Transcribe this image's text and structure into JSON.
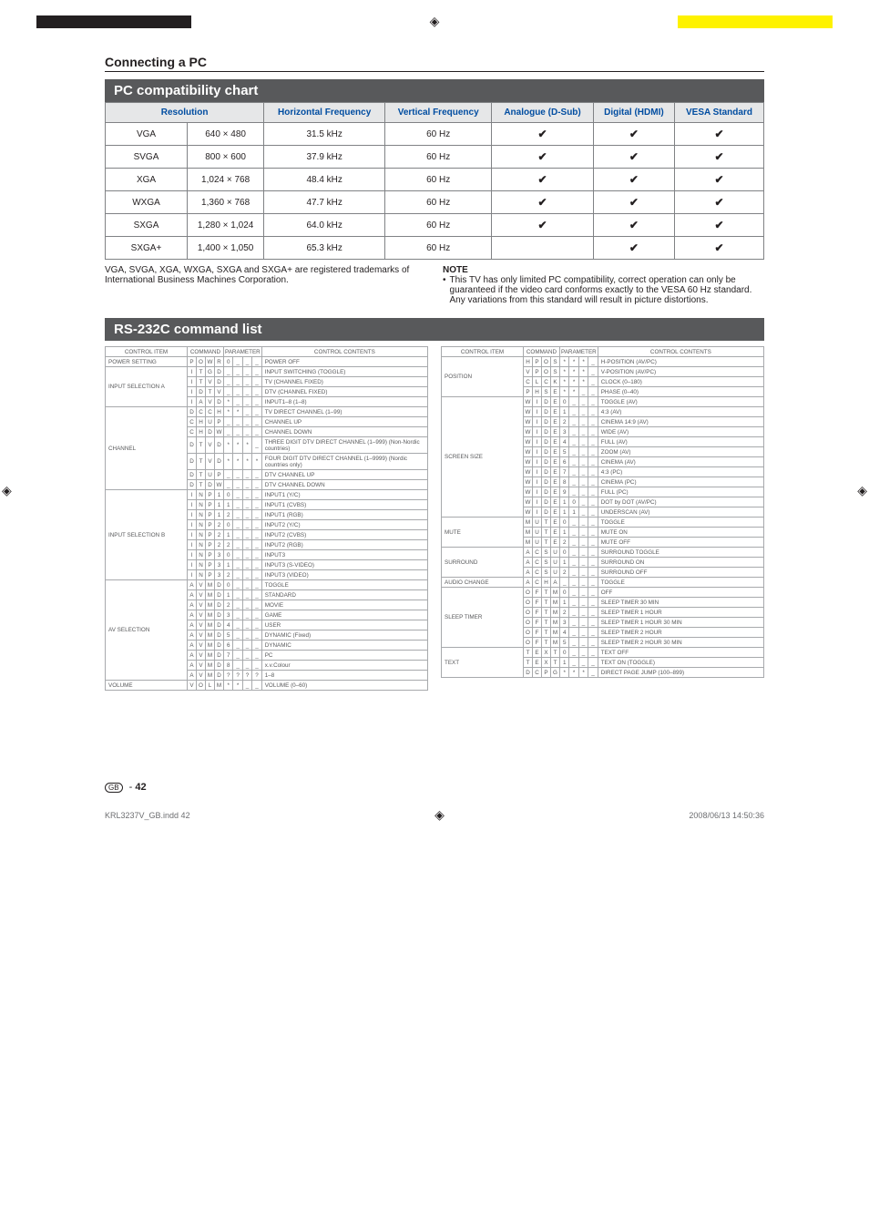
{
  "section_title": "Connecting a PC",
  "pc_chart": {
    "title": "PC compatibility chart",
    "headers": [
      "Resolution",
      "Horizontal Frequency",
      "Vertical Frequency",
      "Analogue (D-Sub)",
      "Digital (HDMI)",
      "VESA Standard"
    ],
    "rows": [
      {
        "label": "VGA",
        "res": "640 × 480",
        "hf": "31.5 kHz",
        "vf": "60 Hz",
        "analog": true,
        "digital": true,
        "vesa": true
      },
      {
        "label": "SVGA",
        "res": "800 × 600",
        "hf": "37.9 kHz",
        "vf": "60 Hz",
        "analog": true,
        "digital": true,
        "vesa": true
      },
      {
        "label": "XGA",
        "res": "1,024 × 768",
        "hf": "48.4 kHz",
        "vf": "60 Hz",
        "analog": true,
        "digital": true,
        "vesa": true
      },
      {
        "label": "WXGA",
        "res": "1,360 × 768",
        "hf": "47.7 kHz",
        "vf": "60 Hz",
        "analog": true,
        "digital": true,
        "vesa": true
      },
      {
        "label": "SXGA",
        "res": "1,280 × 1,024",
        "hf": "64.0 kHz",
        "vf": "60 Hz",
        "analog": true,
        "digital": true,
        "vesa": true
      },
      {
        "label": "SXGA+",
        "res": "1,400 × 1,050",
        "hf": "65.3 kHz",
        "vf": "60 Hz",
        "analog": false,
        "digital": true,
        "vesa": true
      }
    ],
    "trademark_note": "VGA, SVGA, XGA, WXGA, SXGA and SXGA+ are registered trademarks of International Business Machines Corporation.",
    "note_title": "NOTE",
    "note_text": "This TV has only limited PC compatibility, correct operation can only be guaranteed if the video card conforms exactly to the VESA 60 Hz standard. Any variations from this standard will result in picture distortions."
  },
  "rs232c": {
    "title": "RS-232C command list",
    "headers": [
      "CONTROL ITEM",
      "COMMAND",
      "PARAMETER",
      "CONTROL CONTENTS"
    ],
    "left": [
      {
        "item": "POWER SETTING",
        "c": [
          "P",
          "O",
          "W",
          "R"
        ],
        "p": [
          "0",
          "_",
          "_",
          "_"
        ],
        "content": "POWER OFF"
      },
      {
        "item": "INPUT SELECTION A",
        "c": [
          "I",
          "T",
          "G",
          "D"
        ],
        "p": [
          "_",
          "_",
          "_",
          "_"
        ],
        "content": "INPUT SWITCHING (TOGGLE)"
      },
      {
        "item": "",
        "c": [
          "I",
          "T",
          "V",
          "D"
        ],
        "p": [
          "_",
          "_",
          "_",
          "_"
        ],
        "content": "TV (CHANNEL FIXED)"
      },
      {
        "item": "",
        "c": [
          "I",
          "D",
          "T",
          "V"
        ],
        "p": [
          "_",
          "_",
          "_",
          "_"
        ],
        "content": "DTV (CHANNEL FIXED)"
      },
      {
        "item": "",
        "c": [
          "I",
          "A",
          "V",
          "D"
        ],
        "p": [
          "*",
          "_",
          "_",
          "_"
        ],
        "content": "INPUT1–8 (1–8)"
      },
      {
        "item": "CHANNEL",
        "c": [
          "D",
          "C",
          "C",
          "H"
        ],
        "p": [
          "*",
          "*",
          "_",
          "_"
        ],
        "content": "TV DIRECT CHANNEL (1–99)"
      },
      {
        "item": "",
        "c": [
          "C",
          "H",
          "U",
          "P"
        ],
        "p": [
          "_",
          "_",
          "_",
          "_"
        ],
        "content": "CHANNEL UP"
      },
      {
        "item": "",
        "c": [
          "C",
          "H",
          "D",
          "W"
        ],
        "p": [
          "_",
          "_",
          "_",
          "_"
        ],
        "content": "CHANNEL DOWN"
      },
      {
        "item": "",
        "c": [
          "D",
          "T",
          "V",
          "D"
        ],
        "p": [
          "*",
          "*",
          "*",
          "_"
        ],
        "content": "THREE DIGIT DTV DIRECT CHANNEL (1–999) (Non-Nordic countries)"
      },
      {
        "item": "",
        "c": [
          "D",
          "T",
          "V",
          "D"
        ],
        "p": [
          "*",
          "*",
          "*",
          "*"
        ],
        "content": "FOUR DIGIT DTV DIRECT CHANNEL (1–9999) (Nordic countries only)"
      },
      {
        "item": "",
        "c": [
          "D",
          "T",
          "U",
          "P"
        ],
        "p": [
          "_",
          "_",
          "_",
          "_"
        ],
        "content": "DTV CHANNEL UP"
      },
      {
        "item": "",
        "c": [
          "D",
          "T",
          "D",
          "W"
        ],
        "p": [
          "_",
          "_",
          "_",
          "_"
        ],
        "content": "DTV CHANNEL DOWN"
      },
      {
        "item": "INPUT SELECTION B",
        "c": [
          "I",
          "N",
          "P",
          "1"
        ],
        "p": [
          "0",
          "_",
          "_",
          "_"
        ],
        "content": "INPUT1 (Y/C)"
      },
      {
        "item": "",
        "c": [
          "I",
          "N",
          "P",
          "1"
        ],
        "p": [
          "1",
          "_",
          "_",
          "_"
        ],
        "content": "INPUT1 (CVBS)"
      },
      {
        "item": "",
        "c": [
          "I",
          "N",
          "P",
          "1"
        ],
        "p": [
          "2",
          "_",
          "_",
          "_"
        ],
        "content": "INPUT1 (RGB)"
      },
      {
        "item": "",
        "c": [
          "I",
          "N",
          "P",
          "2"
        ],
        "p": [
          "0",
          "_",
          "_",
          "_"
        ],
        "content": "INPUT2 (Y/C)"
      },
      {
        "item": "",
        "c": [
          "I",
          "N",
          "P",
          "2"
        ],
        "p": [
          "1",
          "_",
          "_",
          "_"
        ],
        "content": "INPUT2 (CVBS)"
      },
      {
        "item": "",
        "c": [
          "I",
          "N",
          "P",
          "2"
        ],
        "p": [
          "2",
          "_",
          "_",
          "_"
        ],
        "content": "INPUT2 (RGB)"
      },
      {
        "item": "",
        "c": [
          "I",
          "N",
          "P",
          "3"
        ],
        "p": [
          "0",
          "_",
          "_",
          "_"
        ],
        "content": "INPUT3"
      },
      {
        "item": "",
        "c": [
          "I",
          "N",
          "P",
          "3"
        ],
        "p": [
          "1",
          "_",
          "_",
          "_"
        ],
        "content": "INPUT3 (S-VIDEO)"
      },
      {
        "item": "",
        "c": [
          "I",
          "N",
          "P",
          "3"
        ],
        "p": [
          "2",
          "_",
          "_",
          "_"
        ],
        "content": "INPUT3 (VIDEO)"
      },
      {
        "item": "AV SELECTION",
        "c": [
          "A",
          "V",
          "M",
          "D"
        ],
        "p": [
          "0",
          "_",
          "_",
          "_"
        ],
        "content": "TOGGLE"
      },
      {
        "item": "",
        "c": [
          "A",
          "V",
          "M",
          "D"
        ],
        "p": [
          "1",
          "_",
          "_",
          "_"
        ],
        "content": "STANDARD"
      },
      {
        "item": "",
        "c": [
          "A",
          "V",
          "M",
          "D"
        ],
        "p": [
          "2",
          "_",
          "_",
          "_"
        ],
        "content": "MOVIE"
      },
      {
        "item": "",
        "c": [
          "A",
          "V",
          "M",
          "D"
        ],
        "p": [
          "3",
          "_",
          "_",
          "_"
        ],
        "content": "GAME"
      },
      {
        "item": "",
        "c": [
          "A",
          "V",
          "M",
          "D"
        ],
        "p": [
          "4",
          "_",
          "_",
          "_"
        ],
        "content": "USER"
      },
      {
        "item": "",
        "c": [
          "A",
          "V",
          "M",
          "D"
        ],
        "p": [
          "5",
          "_",
          "_",
          "_"
        ],
        "content": "DYNAMIC (Fixed)"
      },
      {
        "item": "",
        "c": [
          "A",
          "V",
          "M",
          "D"
        ],
        "p": [
          "6",
          "_",
          "_",
          "_"
        ],
        "content": "DYNAMIC"
      },
      {
        "item": "",
        "c": [
          "A",
          "V",
          "M",
          "D"
        ],
        "p": [
          "7",
          "_",
          "_",
          "_"
        ],
        "content": "PC"
      },
      {
        "item": "",
        "c": [
          "A",
          "V",
          "M",
          "D"
        ],
        "p": [
          "8",
          "_",
          "_",
          "_"
        ],
        "content": "x.v.Colour"
      },
      {
        "item": "",
        "c": [
          "A",
          "V",
          "M",
          "D"
        ],
        "p": [
          "?",
          "?",
          "?",
          "?"
        ],
        "content": "1–8"
      },
      {
        "item": "VOLUME",
        "c": [
          "V",
          "O",
          "L",
          "M"
        ],
        "p": [
          "*",
          "*",
          "_",
          "_"
        ],
        "content": "VOLUME (0–60)"
      }
    ],
    "right": [
      {
        "item": "POSITION",
        "c": [
          "H",
          "P",
          "O",
          "S"
        ],
        "p": [
          "*",
          "*",
          "*",
          "_"
        ],
        "content": "H-POSITION (AV/PC)"
      },
      {
        "item": "",
        "c": [
          "V",
          "P",
          "O",
          "S"
        ],
        "p": [
          "*",
          "*",
          "*",
          "_"
        ],
        "content": "V-POSITION (AV/PC)"
      },
      {
        "item": "",
        "c": [
          "C",
          "L",
          "C",
          "K"
        ],
        "p": [
          "*",
          "*",
          "*",
          "_"
        ],
        "content": "CLOCK (0–180)"
      },
      {
        "item": "",
        "c": [
          "P",
          "H",
          "S",
          "E"
        ],
        "p": [
          "*",
          "*",
          "_",
          "_"
        ],
        "content": "PHASE (0–40)"
      },
      {
        "item": "SCREEN SIZE",
        "c": [
          "W",
          "I",
          "D",
          "E"
        ],
        "p": [
          "0",
          "_",
          "_",
          "_"
        ],
        "content": "TOGGLE (AV)"
      },
      {
        "item": "",
        "c": [
          "W",
          "I",
          "D",
          "E"
        ],
        "p": [
          "1",
          "_",
          "_",
          "_"
        ],
        "content": "4:3 (AV)"
      },
      {
        "item": "",
        "c": [
          "W",
          "I",
          "D",
          "E"
        ],
        "p": [
          "2",
          "_",
          "_",
          "_"
        ],
        "content": "CINEMA 14:9 (AV)"
      },
      {
        "item": "",
        "c": [
          "W",
          "I",
          "D",
          "E"
        ],
        "p": [
          "3",
          "_",
          "_",
          "_"
        ],
        "content": "WIDE (AV)"
      },
      {
        "item": "",
        "c": [
          "W",
          "I",
          "D",
          "E"
        ],
        "p": [
          "4",
          "_",
          "_",
          "_"
        ],
        "content": "FULL (AV)"
      },
      {
        "item": "",
        "c": [
          "W",
          "I",
          "D",
          "E"
        ],
        "p": [
          "5",
          "_",
          "_",
          "_"
        ],
        "content": "ZOOM (AV)"
      },
      {
        "item": "",
        "c": [
          "W",
          "I",
          "D",
          "E"
        ],
        "p": [
          "6",
          "_",
          "_",
          "_"
        ],
        "content": "CINEMA (AV)"
      },
      {
        "item": "",
        "c": [
          "W",
          "I",
          "D",
          "E"
        ],
        "p": [
          "7",
          "_",
          "_",
          "_"
        ],
        "content": "4:3 (PC)"
      },
      {
        "item": "",
        "c": [
          "W",
          "I",
          "D",
          "E"
        ],
        "p": [
          "8",
          "_",
          "_",
          "_"
        ],
        "content": "CINEMA (PC)"
      },
      {
        "item": "",
        "c": [
          "W",
          "I",
          "D",
          "E"
        ],
        "p": [
          "9",
          "_",
          "_",
          "_"
        ],
        "content": "FULL (PC)"
      },
      {
        "item": "",
        "c": [
          "W",
          "I",
          "D",
          "E"
        ],
        "p": [
          "1",
          "0",
          "_",
          "_"
        ],
        "content": "DOT by DOT (AV/PC)"
      },
      {
        "item": "",
        "c": [
          "W",
          "I",
          "D",
          "E"
        ],
        "p": [
          "1",
          "1",
          "_",
          "_"
        ],
        "content": "UNDERSCAN (AV)"
      },
      {
        "item": "MUTE",
        "c": [
          "M",
          "U",
          "T",
          "E"
        ],
        "p": [
          "0",
          "_",
          "_",
          "_"
        ],
        "content": "TOGGLE"
      },
      {
        "item": "",
        "c": [
          "M",
          "U",
          "T",
          "E"
        ],
        "p": [
          "1",
          "_",
          "_",
          "_"
        ],
        "content": "MUTE ON"
      },
      {
        "item": "",
        "c": [
          "M",
          "U",
          "T",
          "E"
        ],
        "p": [
          "2",
          "_",
          "_",
          "_"
        ],
        "content": "MUTE OFF"
      },
      {
        "item": "SURROUND",
        "c": [
          "A",
          "C",
          "S",
          "U"
        ],
        "p": [
          "0",
          "_",
          "_",
          "_"
        ],
        "content": "SURROUND TOGGLE"
      },
      {
        "item": "",
        "c": [
          "A",
          "C",
          "S",
          "U"
        ],
        "p": [
          "1",
          "_",
          "_",
          "_"
        ],
        "content": "SURROUND ON"
      },
      {
        "item": "",
        "c": [
          "A",
          "C",
          "S",
          "U"
        ],
        "p": [
          "2",
          "_",
          "_",
          "_"
        ],
        "content": "SURROUND OFF"
      },
      {
        "item": "AUDIO CHANGE",
        "c": [
          "A",
          "C",
          "H",
          "A"
        ],
        "p": [
          "_",
          "_",
          "_",
          "_"
        ],
        "content": "TOGGLE"
      },
      {
        "item": "SLEEP TIMER",
        "c": [
          "O",
          "F",
          "T",
          "M"
        ],
        "p": [
          "0",
          "_",
          "_",
          "_"
        ],
        "content": "OFF"
      },
      {
        "item": "",
        "c": [
          "O",
          "F",
          "T",
          "M"
        ],
        "p": [
          "1",
          "_",
          "_",
          "_"
        ],
        "content": "SLEEP TIMER 30 MIN"
      },
      {
        "item": "",
        "c": [
          "O",
          "F",
          "T",
          "M"
        ],
        "p": [
          "2",
          "_",
          "_",
          "_"
        ],
        "content": "SLEEP TIMER 1 HOUR"
      },
      {
        "item": "",
        "c": [
          "O",
          "F",
          "T",
          "M"
        ],
        "p": [
          "3",
          "_",
          "_",
          "_"
        ],
        "content": "SLEEP TIMER 1 HOUR 30 MIN"
      },
      {
        "item": "",
        "c": [
          "O",
          "F",
          "T",
          "M"
        ],
        "p": [
          "4",
          "_",
          "_",
          "_"
        ],
        "content": "SLEEP TIMER 2 HOUR"
      },
      {
        "item": "",
        "c": [
          "O",
          "F",
          "T",
          "M"
        ],
        "p": [
          "5",
          "_",
          "_",
          "_"
        ],
        "content": "SLEEP TIMER 2 HOUR 30 MIN"
      },
      {
        "item": "TEXT",
        "c": [
          "T",
          "E",
          "X",
          "T"
        ],
        "p": [
          "0",
          "_",
          "_",
          "_"
        ],
        "content": "TEXT OFF"
      },
      {
        "item": "",
        "c": [
          "T",
          "E",
          "X",
          "T"
        ],
        "p": [
          "1",
          "_",
          "_",
          "_"
        ],
        "content": "TEXT ON (TOGGLE)"
      },
      {
        "item": "",
        "c": [
          "D",
          "C",
          "P",
          "G"
        ],
        "p": [
          "*",
          "*",
          "*",
          "_"
        ],
        "content": "DIRECT PAGE JUMP (100–899)"
      }
    ]
  },
  "footer": {
    "gb_label": "GB",
    "page": "42",
    "filename": "KRL3237V_GB.indd   42",
    "timestamp": "2008/06/13   14:50:36"
  }
}
